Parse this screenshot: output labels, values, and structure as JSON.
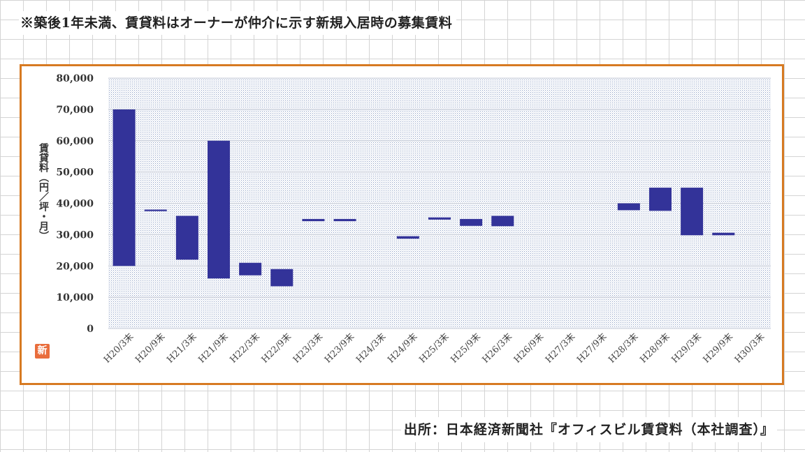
{
  "note": "※築後1年未満、賃貸料はオーナーが仲介に示す新規入居時の募集賃料",
  "source": "出所：日本経済新聞社『オフィスビル賃貸料（本社調査）』",
  "badge": "新",
  "colors": {
    "bar": "#333399",
    "frame": "#d77a22",
    "plot_dots": "#8fa0c4"
  },
  "chart_data": {
    "type": "bar",
    "subtype": "floating",
    "ylabel": "賃貸料（円／坪・月）",
    "ylim": [
      0,
      80000
    ],
    "yticks": [
      0,
      10000,
      20000,
      30000,
      40000,
      50000,
      60000,
      70000,
      80000
    ],
    "ytick_labels": [
      "0",
      "10,000",
      "20,000",
      "30,000",
      "40,000",
      "50,000",
      "60,000",
      "70,000",
      "80,000"
    ],
    "grid": true,
    "categories": [
      "H20/3末",
      "H20/9末",
      "H21/3末",
      "H21/9末",
      "H22/3末",
      "H22/9末",
      "H23/3末",
      "H23/9末",
      "H24/3末",
      "H24/9末",
      "H25/3末",
      "H25/9末",
      "H26/3末",
      "H26/9末",
      "H27/3末",
      "H27/9末",
      "H28/3末",
      "H28/9末",
      "H29/3末",
      "H29/9末",
      "H30/3末"
    ],
    "ranges": [
      [
        20000,
        70000
      ],
      [
        37500,
        38000
      ],
      [
        22000,
        36000
      ],
      [
        16000,
        60000
      ],
      [
        17000,
        21000
      ],
      [
        13500,
        19000
      ],
      [
        34300,
        35000
      ],
      [
        34300,
        35000
      ],
      null,
      [
        28700,
        29500
      ],
      [
        34800,
        35500
      ],
      [
        32800,
        35000
      ],
      [
        32700,
        36000
      ],
      null,
      null,
      null,
      [
        37800,
        40000
      ],
      [
        37600,
        45000
      ],
      [
        29800,
        45000
      ],
      [
        29800,
        30600
      ],
      null
    ]
  }
}
